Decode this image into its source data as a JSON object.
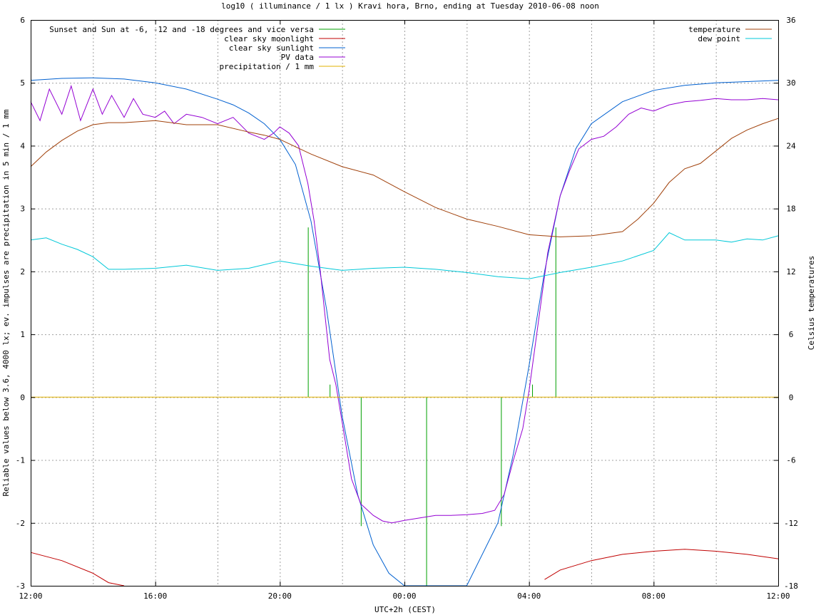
{
  "chart_data": {
    "type": "line",
    "title": "log10 ( illuminance / 1 lx ) Kravi hora, Brno, ending at Tuesday 2010-06-08 noon",
    "xlabel": "UTC+2h (CEST)",
    "ylabel": "Reliable values below 3.6, 4000 lx; ev. impulses are precipitation in 5 min / 1 mm",
    "y2label": "Celsius temperatures",
    "x_unit": "hours since 12:00",
    "xlim": [
      0,
      24
    ],
    "ylim": [
      -3,
      6
    ],
    "y2lim": [
      -18,
      36
    ],
    "xticks": [
      {
        "x": 0,
        "label": "12:00"
      },
      {
        "x": 4,
        "label": "16:00"
      },
      {
        "x": 8,
        "label": "20:00"
      },
      {
        "x": 12,
        "label": "00:00"
      },
      {
        "x": 16,
        "label": "04:00"
      },
      {
        "x": 20,
        "label": "08:00"
      },
      {
        "x": 24,
        "label": "12:00"
      }
    ],
    "yticks": [
      {
        "v": -3,
        "label": "-3"
      },
      {
        "v": -2,
        "label": "-2"
      },
      {
        "v": -1,
        "label": "-1"
      },
      {
        "v": 0,
        "label": "0"
      },
      {
        "v": 1,
        "label": "1"
      },
      {
        "v": 2,
        "label": "2"
      },
      {
        "v": 3,
        "label": "3"
      },
      {
        "v": 4,
        "label": "4"
      },
      {
        "v": 5,
        "label": "5"
      },
      {
        "v": 6,
        "label": "6"
      }
    ],
    "y2ticks": [
      {
        "v": -18,
        "label": "-18"
      },
      {
        "v": -12,
        "label": "-12"
      },
      {
        "v": -6,
        "label": "-6"
      },
      {
        "v": 0,
        "label": "0"
      },
      {
        "v": 6,
        "label": "6"
      },
      {
        "v": 12,
        "label": "12"
      },
      {
        "v": 18,
        "label": "18"
      },
      {
        "v": 24,
        "label": "24"
      },
      {
        "v": 30,
        "label": "30"
      },
      {
        "v": 36,
        "label": "36"
      }
    ],
    "grid": true,
    "legend_left": [
      {
        "name": "Sunset and Sun at -6, -12 and -18 degrees and vice versa",
        "color": "#00a000"
      },
      {
        "name": "clear sky moonlight",
        "color": "#c00000"
      },
      {
        "name": "clear sky sunlight",
        "color": "#0060d0"
      },
      {
        "name": "PV data",
        "color": "#9400d3"
      },
      {
        "name": "precipitation / 1 mm",
        "color": "#e0b000"
      }
    ],
    "legend_right": [
      {
        "name": "temperature",
        "color": "#a0400a"
      },
      {
        "name": "dew point",
        "color": "#00c8d8"
      }
    ],
    "sun_events": [
      {
        "x": 8.9,
        "top": 2.7
      },
      {
        "x": 9.6,
        "top": 0.2
      },
      {
        "x": 10.6,
        "top": -2.05
      },
      {
        "x": 12.7,
        "top": -3
      },
      {
        "x": 15.1,
        "top": -2.05
      },
      {
        "x": 16.1,
        "top": 0.2
      },
      {
        "x": 16.85,
        "top": 2.7
      }
    ],
    "series": [
      {
        "name": "clear sky sunlight",
        "axis": "y1",
        "x": [
          0,
          1,
          2,
          3,
          4,
          5,
          6,
          6.5,
          7,
          7.5,
          8,
          8.5,
          9,
          9.5,
          10,
          10.5,
          11,
          11.5,
          12,
          12.3,
          14,
          15,
          15.5,
          16,
          16.5,
          17,
          17.5,
          18,
          19,
          20,
          21,
          22,
          23,
          24
        ],
        "y": [
          5.04,
          5.07,
          5.08,
          5.06,
          5.0,
          4.9,
          4.74,
          4.65,
          4.52,
          4.35,
          4.1,
          3.7,
          2.8,
          1.4,
          -0.3,
          -1.55,
          -2.35,
          -2.8,
          -3.05,
          -3.1,
          -3.05,
          -2.0,
          -0.9,
          0.5,
          2.0,
          3.2,
          3.95,
          4.35,
          4.7,
          4.88,
          4.96,
          5.0,
          5.02,
          5.04
        ]
      },
      {
        "name": "clear sky moonlight",
        "axis": "y1",
        "x": [
          0,
          1,
          2,
          2.5,
          3,
          3.3,
          16.5,
          17,
          18,
          19,
          20,
          21,
          22,
          23,
          24
        ],
        "y": [
          -2.47,
          -2.6,
          -2.8,
          -2.95,
          -3.05,
          -3.1,
          -2.9,
          -2.75,
          -2.6,
          -2.5,
          -2.45,
          -2.42,
          -2.45,
          -2.5,
          -2.57
        ]
      },
      {
        "name": "PV data",
        "axis": "y1",
        "x": [
          0,
          0.3,
          0.6,
          1.0,
          1.3,
          1.6,
          2.0,
          2.3,
          2.6,
          3.0,
          3.3,
          3.6,
          4.0,
          4.3,
          4.6,
          5.0,
          5.5,
          6.0,
          6.5,
          7.0,
          7.5,
          7.8,
          8.0,
          8.3,
          8.6,
          8.9,
          9.1,
          9.3,
          9.6,
          9.8,
          10.0,
          10.3,
          10.6,
          11.0,
          11.3,
          11.6,
          12.0,
          12.5,
          13.0,
          13.5,
          14.0,
          14.5,
          14.9,
          15.2,
          15.5,
          15.8,
          16.0,
          16.3,
          16.6,
          17.0,
          17.3,
          17.6,
          18.0,
          18.4,
          18.8,
          19.2,
          19.6,
          20.0,
          20.5,
          21.0,
          21.5,
          22.0,
          22.5,
          23.0,
          23.5,
          24.0
        ],
        "y": [
          4.7,
          4.4,
          4.9,
          4.5,
          4.95,
          4.4,
          4.9,
          4.5,
          4.8,
          4.45,
          4.75,
          4.5,
          4.45,
          4.55,
          4.35,
          4.5,
          4.45,
          4.35,
          4.45,
          4.2,
          4.1,
          4.2,
          4.3,
          4.2,
          4.0,
          3.4,
          2.8,
          2.0,
          0.6,
          0.2,
          -0.4,
          -1.3,
          -1.7,
          -1.88,
          -1.97,
          -2.0,
          -1.96,
          -1.92,
          -1.88,
          -1.88,
          -1.87,
          -1.85,
          -1.8,
          -1.55,
          -1.0,
          -0.5,
          0.1,
          1.2,
          2.3,
          3.2,
          3.6,
          3.95,
          4.1,
          4.15,
          4.3,
          4.5,
          4.6,
          4.55,
          4.65,
          4.7,
          4.72,
          4.75,
          4.73,
          4.73,
          4.75,
          4.73
        ]
      },
      {
        "name": "precipitation / 1 mm",
        "axis": "y1",
        "x": [
          0,
          24
        ],
        "y": [
          0,
          0
        ]
      },
      {
        "name": "temperature",
        "axis": "y2",
        "x": [
          0,
          0.5,
          1,
          1.5,
          2,
          2.5,
          3,
          4,
          5,
          6,
          7,
          7.5,
          8,
          8.5,
          9,
          10,
          11,
          12,
          13,
          14,
          15,
          16,
          17,
          18,
          19,
          19.5,
          20,
          20.5,
          21,
          21.5,
          22,
          22.5,
          23,
          23.5,
          24
        ],
        "y": [
          22.0,
          23.4,
          24.5,
          25.4,
          26.0,
          26.2,
          26.2,
          26.4,
          26.0,
          26.0,
          25.3,
          25.0,
          24.6,
          23.9,
          23.2,
          22.0,
          21.2,
          19.6,
          18.1,
          17.0,
          16.3,
          15.5,
          15.3,
          15.4,
          15.8,
          17.0,
          18.5,
          20.5,
          21.8,
          22.3,
          23.5,
          24.7,
          25.5,
          26.1,
          26.6
        ]
      },
      {
        "name": "dew point",
        "axis": "y2",
        "x": [
          0,
          0.5,
          1,
          1.5,
          2,
          2.5,
          3,
          4,
          5,
          6,
          7,
          8,
          9,
          10,
          11,
          12,
          13,
          14,
          15,
          16,
          17,
          18,
          19,
          20,
          20.5,
          21,
          22,
          22.5,
          23,
          23.5,
          24
        ],
        "y": [
          15.0,
          15.2,
          14.6,
          14.1,
          13.4,
          12.2,
          12.2,
          12.3,
          12.6,
          12.1,
          12.3,
          13.0,
          12.5,
          12.1,
          12.3,
          12.4,
          12.2,
          11.9,
          11.5,
          11.3,
          11.9,
          12.4,
          13.0,
          14.0,
          15.7,
          15.0,
          15.0,
          14.8,
          15.1,
          15.0,
          15.4
        ]
      }
    ]
  }
}
